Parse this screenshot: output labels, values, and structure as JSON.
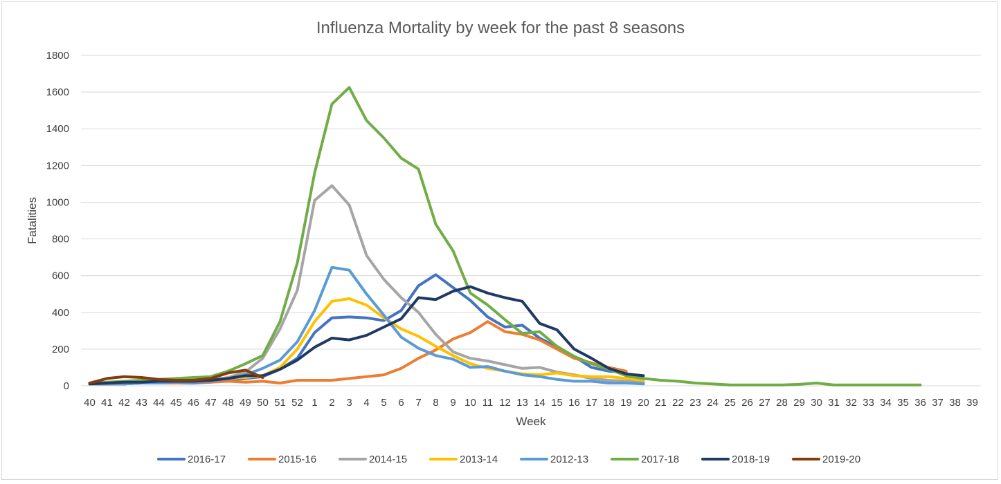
{
  "chart_data": {
    "type": "line",
    "title": "Influenza Mortality by week for the past 8 seasons",
    "xlabel": "Week",
    "ylabel": "Fatalities",
    "ylim": [
      0,
      1800
    ],
    "yticks": [
      "0",
      "200",
      "400",
      "600",
      "800",
      "1000",
      "1200",
      "1400",
      "1600",
      "1800"
    ],
    "grid": true,
    "legend_position": "bottom",
    "categories": [
      "40",
      "41",
      "42",
      "43",
      "44",
      "45",
      "46",
      "47",
      "48",
      "49",
      "50",
      "51",
      "52",
      "1",
      "2",
      "3",
      "4",
      "5",
      "6",
      "7",
      "8",
      "9",
      "10",
      "11",
      "12",
      "13",
      "14",
      "15",
      "16",
      "17",
      "18",
      "19",
      "20",
      "21",
      "22",
      "23",
      "24",
      "25",
      "26",
      "27",
      "28",
      "29",
      "30",
      "31",
      "32",
      "33",
      "34",
      "35",
      "36",
      "37",
      "38",
      "39"
    ],
    "series": [
      {
        "name": "2016-17",
        "color": "#4472C4",
        "values": [
          10,
          10,
          10,
          15,
          15,
          15,
          15,
          20,
          30,
          40,
          50,
          90,
          150,
          290,
          370,
          375,
          370,
          355,
          410,
          545,
          605,
          535,
          465,
          375,
          320,
          330,
          260,
          210,
          160,
          100,
          80,
          75,
          null,
          null,
          null,
          null,
          null,
          null,
          null,
          null,
          null,
          null,
          null,
          null,
          null,
          null,
          null,
          null,
          null,
          null,
          null,
          null
        ]
      },
      {
        "name": "2015-16",
        "color": "#ED7D31",
        "values": [
          10,
          10,
          10,
          15,
          15,
          15,
          20,
          20,
          25,
          20,
          25,
          15,
          30,
          30,
          30,
          40,
          50,
          60,
          95,
          150,
          195,
          255,
          290,
          350,
          295,
          280,
          250,
          200,
          150,
          125,
          100,
          80,
          null,
          null,
          null,
          null,
          null,
          null,
          null,
          null,
          null,
          null,
          null,
          null,
          null,
          null,
          null,
          null,
          null,
          null,
          null,
          null
        ]
      },
      {
        "name": "2014-15",
        "color": "#A5A5A5",
        "values": [
          10,
          15,
          15,
          20,
          20,
          20,
          20,
          30,
          45,
          75,
          150,
          310,
          520,
          1010,
          1090,
          985,
          710,
          580,
          480,
          400,
          280,
          185,
          150,
          135,
          115,
          95,
          100,
          75,
          60,
          40,
          30,
          25,
          20,
          null,
          null,
          null,
          null,
          null,
          null,
          null,
          null,
          null,
          null,
          null,
          null,
          null,
          null,
          null,
          null,
          null,
          null,
          null
        ]
      },
      {
        "name": "2013-14",
        "color": "#FFC000",
        "values": [
          10,
          15,
          20,
          20,
          25,
          25,
          25,
          30,
          40,
          45,
          55,
          100,
          200,
          350,
          460,
          475,
          440,
          370,
          310,
          270,
          215,
          165,
          120,
          95,
          80,
          65,
          60,
          70,
          55,
          50,
          50,
          40,
          30,
          null,
          null,
          null,
          null,
          null,
          null,
          null,
          null,
          null,
          null,
          null,
          null,
          null,
          null,
          null,
          null,
          null,
          null,
          null
        ]
      },
      {
        "name": "2012-13",
        "color": "#5B9BD5",
        "values": [
          10,
          10,
          10,
          15,
          15,
          20,
          20,
          25,
          40,
          60,
          95,
          140,
          240,
          410,
          645,
          630,
          500,
          385,
          265,
          205,
          165,
          145,
          100,
          105,
          80,
          60,
          50,
          35,
          25,
          25,
          15,
          15,
          10,
          null,
          null,
          null,
          null,
          null,
          null,
          null,
          null,
          null,
          null,
          null,
          null,
          null,
          null,
          null,
          null,
          null,
          null,
          null
        ]
      },
      {
        "name": "2017-18",
        "color": "#70AD47",
        "values": [
          15,
          20,
          25,
          30,
          35,
          40,
          45,
          50,
          80,
          120,
          165,
          350,
          670,
          1160,
          1535,
          1625,
          1445,
          1350,
          1240,
          1180,
          880,
          735,
          505,
          440,
          360,
          285,
          295,
          215,
          160,
          120,
          90,
          55,
          40,
          30,
          25,
          15,
          10,
          5,
          5,
          5,
          5,
          8,
          15,
          5,
          5,
          5,
          5,
          5,
          5,
          null,
          null,
          null
        ]
      },
      {
        "name": "2018-19",
        "color": "#203864",
        "values": [
          10,
          15,
          20,
          20,
          25,
          25,
          25,
          30,
          40,
          55,
          55,
          90,
          140,
          210,
          260,
          250,
          275,
          320,
          365,
          480,
          470,
          515,
          540,
          505,
          480,
          460,
          340,
          305,
          200,
          150,
          95,
          65,
          55,
          null,
          null,
          null,
          null,
          null,
          null,
          null,
          null,
          null,
          null,
          null,
          null,
          null,
          null,
          null,
          null,
          null,
          null,
          null
        ]
      },
      {
        "name": "2019-20",
        "color": "#843C0C",
        "values": [
          15,
          40,
          50,
          45,
          35,
          30,
          30,
          40,
          70,
          85,
          45,
          null,
          null,
          null,
          null,
          null,
          null,
          null,
          null,
          null,
          null,
          null,
          null,
          null,
          null,
          null,
          null,
          null,
          null,
          null,
          null,
          null,
          null,
          null,
          null,
          null,
          null,
          null,
          null,
          null,
          null,
          null,
          null,
          null,
          null,
          null,
          null,
          null,
          null,
          null,
          null,
          null
        ]
      }
    ]
  }
}
